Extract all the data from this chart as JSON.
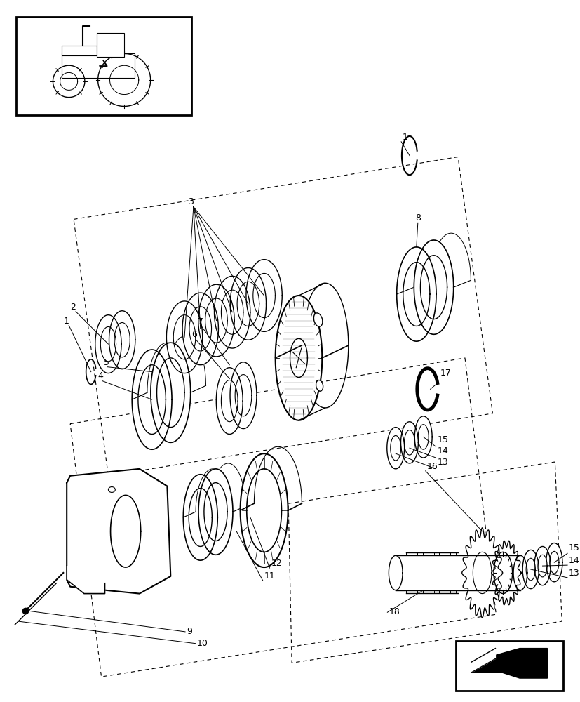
{
  "bg_color": "#ffffff",
  "line_color": "#000000",
  "fig_width": 8.28,
  "fig_height": 10.0
}
